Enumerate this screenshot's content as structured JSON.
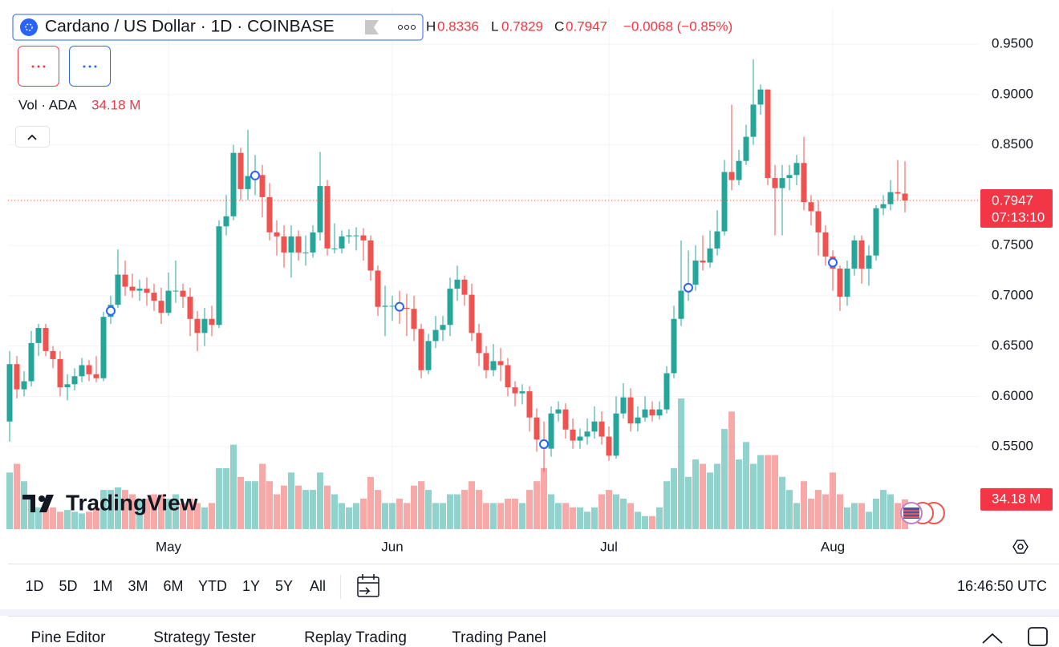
{
  "header": {
    "symbol": "Cardano / US Dollar · 1D · COINBASE",
    "h": "H",
    "l": "L",
    "c": "C",
    "change": "−0.0068 (−0.85%)"
  },
  "volume_legend": {
    "title": "Vol · ADA",
    "value": "34.18 M"
  },
  "countdown": "07:13:10",
  "volume_axis_label": "34.18 M",
  "logo": "TradingView",
  "ranges": [
    "1D",
    "5D",
    "1M",
    "3M",
    "6M",
    "YTD",
    "1Y",
    "5Y",
    "All"
  ],
  "clock": "16:46:50 UTC",
  "tabs": [
    "Pine Editor",
    "Strategy Tester",
    "Replay Trading",
    "Trading Panel"
  ],
  "chart_data": {
    "type": "candlestick",
    "up_color": "#26a69a",
    "down_color": "#ef5350",
    "ylim": [
      0.468,
      0.986
    ],
    "yticks": [
      {
        "value": 0.95,
        "label": "0.9500"
      },
      {
        "value": 0.9,
        "label": "0.9000"
      },
      {
        "value": 0.85,
        "label": "0.8500"
      },
      {
        "value": 0.8,
        "label": "0.8000"
      },
      {
        "value": 0.75,
        "label": "0.7500"
      },
      {
        "value": 0.7,
        "label": "0.7000"
      },
      {
        "value": 0.65,
        "label": "0.6500"
      },
      {
        "value": 0.6,
        "label": "0.6000"
      },
      {
        "value": 0.55,
        "label": "0.5500"
      }
    ],
    "grid": true,
    "categories": [
      null,
      null,
      null,
      null,
      null,
      null,
      null,
      null,
      null,
      null,
      null,
      null,
      null,
      null,
      null,
      null,
      null,
      null,
      null,
      null,
      null,
      null,
      "May",
      null,
      null,
      null,
      null,
      null,
      null,
      null,
      null,
      null,
      null,
      null,
      null,
      null,
      null,
      null,
      null,
      null,
      null,
      null,
      null,
      null,
      null,
      null,
      null,
      null,
      null,
      null,
      null,
      null,
      null,
      "Jun",
      null,
      null,
      null,
      null,
      null,
      null,
      null,
      null,
      null,
      null,
      null,
      null,
      null,
      null,
      null,
      null,
      null,
      null,
      null,
      null,
      null,
      null,
      null,
      null,
      null,
      null,
      null,
      null,
      null,
      "Jul",
      null,
      null,
      null,
      null,
      null,
      null,
      null,
      null,
      null,
      null,
      null,
      null,
      null,
      null,
      null,
      null,
      null,
      null,
      null,
      null,
      null,
      null,
      null,
      null,
      null,
      null,
      null,
      null,
      null,
      null,
      "Aug",
      null,
      null,
      null,
      null,
      null,
      null,
      null,
      null,
      null,
      null
    ],
    "candles": [
      [
        0.575,
        0.645,
        0.555,
        0.632
      ],
      [
        0.632,
        0.64,
        0.598,
        0.607
      ],
      [
        0.607,
        0.625,
        0.6,
        0.615
      ],
      [
        0.615,
        0.665,
        0.61,
        0.653
      ],
      [
        0.653,
        0.672,
        0.64,
        0.668
      ],
      [
        0.668,
        0.672,
        0.64,
        0.645
      ],
      [
        0.645,
        0.65,
        0.628,
        0.637
      ],
      [
        0.637,
        0.645,
        0.6,
        0.609
      ],
      [
        0.609,
        0.622,
        0.596,
        0.612
      ],
      [
        0.612,
        0.628,
        0.606,
        0.62
      ],
      [
        0.62,
        0.638,
        0.614,
        0.631
      ],
      [
        0.631,
        0.636,
        0.615,
        0.622
      ],
      [
        0.622,
        0.64,
        0.614,
        0.618
      ],
      [
        0.618,
        0.684,
        0.615,
        0.679
      ],
      [
        0.679,
        0.7,
        0.672,
        0.691
      ],
      [
        0.691,
        0.746,
        0.688,
        0.721
      ],
      [
        0.721,
        0.735,
        0.7,
        0.709
      ],
      [
        0.709,
        0.722,
        0.698,
        0.705
      ],
      [
        0.705,
        0.716,
        0.695,
        0.707
      ],
      [
        0.707,
        0.718,
        0.69,
        0.703
      ],
      [
        0.703,
        0.712,
        0.685,
        0.695
      ],
      [
        0.695,
        0.708,
        0.672,
        0.683
      ],
      [
        0.683,
        0.723,
        0.68,
        0.705
      ],
      [
        0.705,
        0.735,
        0.693,
        0.705
      ],
      [
        0.705,
        0.712,
        0.688,
        0.699
      ],
      [
        0.699,
        0.708,
        0.66,
        0.677
      ],
      [
        0.677,
        0.685,
        0.645,
        0.663
      ],
      [
        0.663,
        0.688,
        0.65,
        0.677
      ],
      [
        0.677,
        0.69,
        0.66,
        0.671
      ],
      [
        0.671,
        0.775,
        0.668,
        0.769
      ],
      [
        0.769,
        0.8,
        0.76,
        0.779
      ],
      [
        0.779,
        0.85,
        0.775,
        0.842
      ],
      [
        0.842,
        0.847,
        0.795,
        0.806
      ],
      [
        0.806,
        0.865,
        0.795,
        0.819
      ],
      [
        0.819,
        0.84,
        0.8,
        0.82
      ],
      [
        0.82,
        0.83,
        0.778,
        0.798
      ],
      [
        0.798,
        0.812,
        0.755,
        0.763
      ],
      [
        0.763,
        0.775,
        0.74,
        0.759
      ],
      [
        0.759,
        0.77,
        0.728,
        0.743
      ],
      [
        0.743,
        0.77,
        0.718,
        0.759
      ],
      [
        0.759,
        0.765,
        0.735,
        0.743
      ],
      [
        0.743,
        0.76,
        0.73,
        0.743
      ],
      [
        0.743,
        0.77,
        0.738,
        0.763
      ],
      [
        0.763,
        0.843,
        0.755,
        0.809
      ],
      [
        0.809,
        0.815,
        0.74,
        0.747
      ],
      [
        0.747,
        0.772,
        0.742,
        0.747
      ],
      [
        0.747,
        0.765,
        0.742,
        0.759
      ],
      [
        0.759,
        0.766,
        0.752,
        0.76
      ],
      [
        0.76,
        0.768,
        0.745,
        0.76
      ],
      [
        0.76,
        0.767,
        0.735,
        0.755
      ],
      [
        0.755,
        0.76,
        0.715,
        0.725
      ],
      [
        0.725,
        0.73,
        0.68,
        0.689
      ],
      [
        0.689,
        0.71,
        0.66,
        0.69
      ],
      [
        0.69,
        0.7,
        0.675,
        0.69
      ],
      [
        0.69,
        0.705,
        0.672,
        0.688
      ],
      [
        0.688,
        0.702,
        0.66,
        0.687
      ],
      [
        0.687,
        0.7,
        0.655,
        0.667
      ],
      [
        0.667,
        0.672,
        0.618,
        0.626
      ],
      [
        0.626,
        0.662,
        0.622,
        0.655
      ],
      [
        0.655,
        0.68,
        0.648,
        0.666
      ],
      [
        0.666,
        0.68,
        0.655,
        0.671
      ],
      [
        0.671,
        0.718,
        0.66,
        0.707
      ],
      [
        0.707,
        0.73,
        0.695,
        0.716
      ],
      [
        0.716,
        0.72,
        0.69,
        0.701
      ],
      [
        0.701,
        0.712,
        0.655,
        0.663
      ],
      [
        0.663,
        0.672,
        0.63,
        0.643
      ],
      [
        0.643,
        0.65,
        0.618,
        0.626
      ],
      [
        0.626,
        0.652,
        0.62,
        0.635
      ],
      [
        0.635,
        0.648,
        0.615,
        0.631
      ],
      [
        0.631,
        0.638,
        0.6,
        0.609
      ],
      [
        0.609,
        0.615,
        0.59,
        0.603
      ],
      [
        0.603,
        0.612,
        0.592,
        0.605
      ],
      [
        0.605,
        0.61,
        0.565,
        0.579
      ],
      [
        0.579,
        0.588,
        0.545,
        0.557
      ],
      [
        0.557,
        0.575,
        0.525,
        0.548
      ],
      [
        0.548,
        0.59,
        0.54,
        0.583
      ],
      [
        0.583,
        0.595,
        0.575,
        0.587
      ],
      [
        0.587,
        0.593,
        0.558,
        0.567
      ],
      [
        0.567,
        0.578,
        0.548,
        0.556
      ],
      [
        0.556,
        0.568,
        0.548,
        0.56
      ],
      [
        0.56,
        0.578,
        0.552,
        0.565
      ],
      [
        0.565,
        0.59,
        0.558,
        0.575
      ],
      [
        0.575,
        0.585,
        0.552,
        0.56
      ],
      [
        0.56,
        0.57,
        0.536,
        0.541
      ],
      [
        0.541,
        0.6,
        0.538,
        0.583
      ],
      [
        0.583,
        0.613,
        0.578,
        0.599
      ],
      [
        0.599,
        0.608,
        0.565,
        0.573
      ],
      [
        0.573,
        0.59,
        0.565,
        0.579
      ],
      [
        0.579,
        0.6,
        0.575,
        0.587
      ],
      [
        0.587,
        0.595,
        0.575,
        0.581
      ],
      [
        0.581,
        0.595,
        0.577,
        0.587
      ],
      [
        0.587,
        0.63,
        0.583,
        0.623
      ],
      [
        0.623,
        0.69,
        0.618,
        0.677
      ],
      [
        0.677,
        0.755,
        0.67,
        0.705
      ],
      [
        0.705,
        0.745,
        0.695,
        0.711
      ],
      [
        0.711,
        0.75,
        0.705,
        0.735
      ],
      [
        0.735,
        0.76,
        0.725,
        0.733
      ],
      [
        0.733,
        0.765,
        0.728,
        0.747
      ],
      [
        0.747,
        0.785,
        0.74,
        0.764
      ],
      [
        0.764,
        0.835,
        0.76,
        0.823
      ],
      [
        0.823,
        0.89,
        0.805,
        0.815
      ],
      [
        0.815,
        0.845,
        0.81,
        0.834
      ],
      [
        0.834,
        0.87,
        0.83,
        0.858
      ],
      [
        0.858,
        0.935,
        0.85,
        0.89
      ],
      [
        0.89,
        0.91,
        0.88,
        0.905
      ],
      [
        0.905,
        0.905,
        0.81,
        0.817
      ],
      [
        0.817,
        0.83,
        0.76,
        0.807
      ],
      [
        0.807,
        0.83,
        0.76,
        0.817
      ],
      [
        0.817,
        0.83,
        0.805,
        0.82
      ],
      [
        0.82,
        0.84,
        0.81,
        0.832
      ],
      [
        0.832,
        0.858,
        0.785,
        0.793
      ],
      [
        0.793,
        0.8,
        0.77,
        0.784
      ],
      [
        0.784,
        0.795,
        0.74,
        0.763
      ],
      [
        0.763,
        0.77,
        0.73,
        0.739
      ],
      [
        0.739,
        0.745,
        0.705,
        0.727
      ],
      [
        0.727,
        0.73,
        0.685,
        0.699
      ],
      [
        0.699,
        0.735,
        0.69,
        0.727
      ],
      [
        0.727,
        0.76,
        0.72,
        0.755
      ],
      [
        0.755,
        0.76,
        0.712,
        0.727
      ],
      [
        0.727,
        0.75,
        0.71,
        0.74
      ],
      [
        0.74,
        0.79,
        0.735,
        0.787
      ],
      [
        0.787,
        0.8,
        0.78,
        0.791
      ],
      [
        0.791,
        0.815,
        0.785,
        0.803
      ],
      [
        0.803,
        0.835,
        0.795,
        0.8015
      ],
      [
        0.8015,
        0.8336,
        0.7829,
        0.7947
      ]
    ],
    "volume": [
      65,
      75,
      55,
      35,
      25,
      30,
      25,
      20,
      22,
      20,
      18,
      20,
      25,
      45,
      45,
      48,
      45,
      40,
      35,
      35,
      40,
      40,
      35,
      40,
      30,
      35,
      30,
      25,
      30,
      70,
      70,
      97,
      60,
      55,
      55,
      75,
      55,
      40,
      50,
      65,
      50,
      45,
      45,
      65,
      50,
      40,
      30,
      25,
      30,
      35,
      60,
      45,
      30,
      30,
      35,
      30,
      50,
      55,
      45,
      30,
      30,
      40,
      40,
      45,
      55,
      45,
      30,
      30,
      30,
      35,
      35,
      30,
      45,
      55,
      70,
      40,
      30,
      30,
      25,
      25,
      20,
      25,
      40,
      45,
      40,
      35,
      30,
      20,
      15,
      15,
      25,
      55,
      70,
      150,
      60,
      80,
      75,
      65,
      75,
      115,
      135,
      80,
      100,
      75,
      85,
      85,
      85,
      60,
      45,
      30,
      55,
      35,
      45,
      40,
      65,
      40,
      25,
      30,
      30,
      20,
      35,
      45,
      40,
      30,
      34.18
    ]
  }
}
